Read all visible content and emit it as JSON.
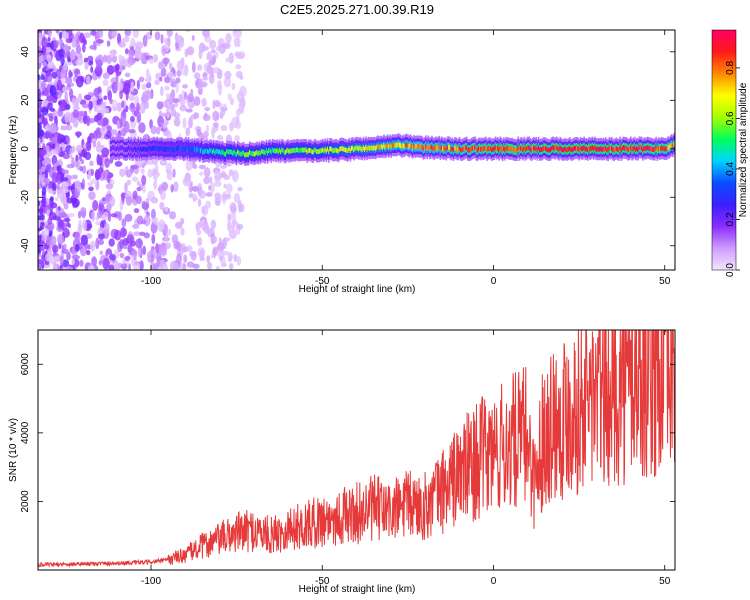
{
  "figure_title": "C2E5.2025.271.00.39.R19",
  "chart_data": [
    {
      "type": "heatmap",
      "xlabel": "Height of straight line (km)",
      "ylabel": "Frequency (Hz)",
      "xlim": [
        -133,
        53
      ],
      "ylim": [
        -50,
        49
      ],
      "xticks": [
        "-100",
        "-50",
        "0",
        "50"
      ],
      "xtick_values": [
        -100,
        -50,
        0,
        50
      ],
      "yticks": [
        "-40",
        "-20",
        "0",
        "20",
        "40"
      ],
      "ytick_values": [
        -40,
        -20,
        0,
        20,
        40
      ],
      "colorbar": {
        "label": "Normalized spectral amplitude",
        "range": [
          0,
          0.95
        ],
        "ticks": [
          "0.0",
          "0.2",
          "0.4",
          "0.6",
          "0.8"
        ],
        "tick_values": [
          0,
          0.2,
          0.4,
          0.6,
          0.8
        ],
        "colors": [
          "#f2e6ff",
          "#cf9cff",
          "#8b2cff",
          "#3a1fff",
          "#0b4cff",
          "#00d4ff",
          "#00ff5a",
          "#a6ff00",
          "#ffff00",
          "#ff8800",
          "#ff1a1a",
          "#ff0066"
        ]
      },
      "ridge": {
        "description_values": "dominant signal centred near 0 Hz",
        "x": [
          -110,
          -100,
          -90,
          -80,
          -72,
          -65,
          -55,
          -45,
          -35,
          -28,
          -20,
          -10,
          0,
          10,
          20,
          30,
          40,
          50,
          53
        ],
        "frequency": [
          0,
          0,
          0,
          -1.5,
          -2,
          -1,
          -1,
          -0.5,
          0.5,
          1.5,
          0.5,
          0,
          0,
          0,
          0,
          0,
          0,
          0,
          2
        ],
        "amplitude": [
          0.2,
          0.3,
          0.35,
          0.5,
          0.6,
          0.55,
          0.6,
          0.65,
          0.7,
          0.75,
          0.8,
          0.85,
          0.9,
          0.9,
          0.92,
          0.92,
          0.9,
          0.88,
          0.7
        ]
      }
    },
    {
      "type": "line",
      "xlabel": "Height of straight line (km)",
      "ylabel": "SNR (10 * v/v)",
      "xlim": [
        -133,
        53
      ],
      "ylim": [
        0,
        7000
      ],
      "xticks": [
        "-100",
        "-50",
        "0",
        "50"
      ],
      "xtick_values": [
        -100,
        -50,
        0,
        50
      ],
      "yticks": [
        "2000",
        "4000",
        "6000"
      ],
      "ytick_values": [
        2000,
        4000,
        6000
      ],
      "series_color": "#e63a3a",
      "series": [
        {
          "x": [
            -133,
            -120,
            -110,
            -100,
            -95,
            -90,
            -85,
            -80,
            -75,
            -70,
            -65,
            -60,
            -55,
            -50,
            -45,
            -40,
            -35,
            -30,
            -25,
            -20,
            -15,
            -10,
            -5,
            0,
            5,
            10,
            12,
            15,
            20,
            25,
            30,
            35,
            40,
            45,
            50,
            53
          ],
          "y": [
            150,
            180,
            200,
            230,
            300,
            450,
            700,
            900,
            1100,
            1150,
            1000,
            1200,
            1300,
            1450,
            1550,
            1650,
            1800,
            1700,
            1900,
            1850,
            2300,
            2800,
            3200,
            3400,
            3700,
            3900,
            2500,
            4200,
            4500,
            4900,
            5100,
            5300,
            5500,
            5700,
            5800,
            5900
          ]
        }
      ]
    }
  ]
}
